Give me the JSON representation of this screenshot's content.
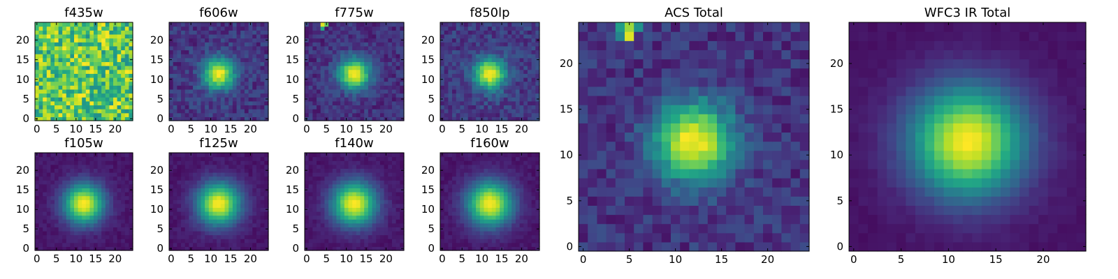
{
  "chart_data": [
    {
      "type": "heatmap",
      "title": "f435w",
      "xticks": [
        0,
        5,
        10,
        15,
        20
      ],
      "yticks": [
        0,
        5,
        10,
        15,
        20
      ],
      "xlim": [
        -0.5,
        24.5
      ],
      "ylim": [
        -0.5,
        24.5
      ],
      "grid": false,
      "colormap": "viridis",
      "values": {
        "grid_size": 25,
        "model": "noisy",
        "center": [
          11.5,
          11.5
        ],
        "peak": 0.62,
        "background": 0.74,
        "noise": 0.26,
        "sigma": 6.0
      }
    },
    {
      "type": "heatmap",
      "title": "f606w",
      "xticks": [
        0,
        5,
        10,
        15,
        20
      ],
      "yticks": [
        0,
        5,
        10,
        15,
        20
      ],
      "xlim": [
        -0.5,
        24.5
      ],
      "ylim": [
        -0.5,
        24.5
      ],
      "grid": false,
      "colormap": "viridis",
      "values": {
        "grid_size": 25,
        "model": "gaussian",
        "center": [
          12,
          11.5
        ],
        "peak": 1.0,
        "background": 0.16,
        "noise": 0.1,
        "sigma": 2.8
      }
    },
    {
      "type": "heatmap",
      "title": "f775w",
      "xticks": [
        0,
        5,
        10,
        15,
        20
      ],
      "yticks": [
        0,
        5,
        10,
        15,
        20
      ],
      "xlim": [
        -0.5,
        24.5
      ],
      "ylim": [
        -0.5,
        24.5
      ],
      "grid": false,
      "colormap": "viridis",
      "values": {
        "grid_size": 25,
        "model": "gaussian",
        "center": [
          12,
          11.5
        ],
        "peak": 1.0,
        "background": 0.14,
        "noise": 0.09,
        "sigma": 2.8,
        "hot_pixels": [
          [
            4,
            24,
            0.95
          ],
          [
            5,
            24,
            0.75
          ],
          [
            4,
            23,
            0.6
          ]
        ]
      }
    },
    {
      "type": "heatmap",
      "title": "f850lp",
      "xticks": [
        0,
        5,
        10,
        15,
        20
      ],
      "yticks": [
        0,
        5,
        10,
        15,
        20
      ],
      "xlim": [
        -0.5,
        24.5
      ],
      "ylim": [
        -0.5,
        24.5
      ],
      "grid": false,
      "colormap": "viridis",
      "values": {
        "grid_size": 25,
        "model": "gaussian",
        "center": [
          12,
          11.5
        ],
        "peak": 1.0,
        "background": 0.17,
        "noise": 0.1,
        "sigma": 2.8
      }
    },
    {
      "type": "heatmap",
      "title": "f105w",
      "xticks": [
        0,
        5,
        10,
        15,
        20
      ],
      "yticks": [
        0,
        5,
        10,
        15,
        20
      ],
      "xlim": [
        -0.5,
        24.5
      ],
      "ylim": [
        -0.5,
        24.5
      ],
      "grid": false,
      "colormap": "viridis",
      "values": {
        "grid_size": 25,
        "model": "gaussian",
        "center": [
          12,
          11.5
        ],
        "peak": 1.0,
        "background": 0.06,
        "noise": 0.035,
        "sigma": 3.6
      }
    },
    {
      "type": "heatmap",
      "title": "f125w",
      "xticks": [
        0,
        5,
        10,
        15,
        20
      ],
      "yticks": [
        0,
        5,
        10,
        15,
        20
      ],
      "xlim": [
        -0.5,
        24.5
      ],
      "ylim": [
        -0.5,
        24.5
      ],
      "grid": false,
      "colormap": "viridis",
      "values": {
        "grid_size": 25,
        "model": "gaussian",
        "center": [
          12,
          11.5
        ],
        "peak": 1.0,
        "background": 0.06,
        "noise": 0.035,
        "sigma": 3.8
      }
    },
    {
      "type": "heatmap",
      "title": "f140w",
      "xticks": [
        0,
        5,
        10,
        15,
        20
      ],
      "yticks": [
        0,
        5,
        10,
        15,
        20
      ],
      "xlim": [
        -0.5,
        24.5
      ],
      "ylim": [
        -0.5,
        24.5
      ],
      "grid": false,
      "colormap": "viridis",
      "values": {
        "grid_size": 25,
        "model": "gaussian",
        "center": [
          12,
          11.5
        ],
        "peak": 1.0,
        "background": 0.06,
        "noise": 0.035,
        "sigma": 3.9
      }
    },
    {
      "type": "heatmap",
      "title": "f160w",
      "xticks": [
        0,
        5,
        10,
        15,
        20
      ],
      "yticks": [
        0,
        5,
        10,
        15,
        20
      ],
      "xlim": [
        -0.5,
        24.5
      ],
      "ylim": [
        -0.5,
        24.5
      ],
      "grid": false,
      "colormap": "viridis",
      "values": {
        "grid_size": 25,
        "model": "gaussian",
        "center": [
          12,
          11.5
        ],
        "peak": 1.0,
        "background": 0.06,
        "noise": 0.035,
        "sigma": 4.0
      }
    },
    {
      "type": "heatmap",
      "title": "ACS Total",
      "xticks": [
        0,
        5,
        10,
        15,
        20
      ],
      "yticks": [
        0,
        5,
        10,
        15,
        20
      ],
      "xlim": [
        -0.5,
        24.5
      ],
      "ylim": [
        -0.5,
        24.5
      ],
      "grid": false,
      "colormap": "viridis",
      "values": {
        "grid_size": 25,
        "model": "gaussian",
        "center": [
          12,
          11.5
        ],
        "peak": 1.0,
        "background": 0.15,
        "noise": 0.1,
        "sigma": 3.0,
        "hot_pixels": [
          [
            4,
            24,
            0.55
          ],
          [
            5,
            24,
            0.85
          ],
          [
            5,
            23,
            0.95
          ],
          [
            6,
            24,
            0.5
          ],
          [
            4,
            23,
            0.45
          ]
        ]
      }
    },
    {
      "type": "heatmap",
      "title": "WFC3 IR Total",
      "xticks": [
        0,
        5,
        10,
        15,
        20
      ],
      "yticks": [
        0,
        5,
        10,
        15,
        20
      ],
      "xlim": [
        -0.5,
        24.5
      ],
      "ylim": [
        -0.5,
        24.5
      ],
      "grid": false,
      "colormap": "viridis",
      "values": {
        "grid_size": 25,
        "model": "gaussian",
        "center": [
          12,
          11.5
        ],
        "peak": 1.0,
        "background": 0.05,
        "noise": 0.02,
        "sigma": 4.2
      }
    }
  ]
}
